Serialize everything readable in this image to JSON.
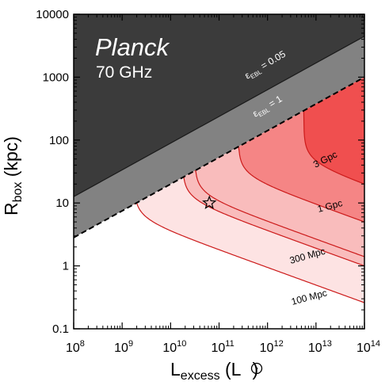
{
  "chart_data": {
    "type": "area",
    "x_scale": "log",
    "y_scale": "log",
    "xlim": [
      100000000.0,
      100000000000000.0
    ],
    "ylim": [
      0.1,
      10000
    ],
    "xlabel": {
      "main": "L",
      "sub": "excess",
      "unit_open": " (L",
      "unit_close": ")"
    },
    "ylabel": {
      "main": "R",
      "sub": "box",
      "unit": " (kpc)"
    },
    "x_ticks": [
      {
        "value": 100000000.0,
        "exp": "8"
      },
      {
        "value": 1000000000.0,
        "exp": "9"
      },
      {
        "value": 10000000000.0,
        "exp": "10"
      },
      {
        "value": 100000000000.0,
        "exp": "11"
      },
      {
        "value": 1000000000000.0,
        "exp": "12"
      },
      {
        "value": 10000000000000.0,
        "exp": "13"
      },
      {
        "value": 100000000000000.0,
        "exp": "14"
      }
    ],
    "y_ticks": [
      {
        "value": 0.1,
        "label": "0.1"
      },
      {
        "value": 1,
        "label": "1"
      },
      {
        "value": 10,
        "label": "10"
      },
      {
        "value": 100,
        "label": "100"
      },
      {
        "value": 1000,
        "label": "1000"
      },
      {
        "value": 10000,
        "label": "10000"
      }
    ],
    "annotations": {
      "title": "Planck",
      "subtitle": "70 GHz",
      "eps_low": {
        "symbol": "ε",
        "sub": "EBL",
        "text": " = 0.05"
      },
      "eps_high": {
        "symbol": "ε",
        "sub": "EBL",
        "text": " = 1"
      }
    },
    "boundaries": [
      {
        "name": "ε_EBL = 0.05",
        "points": [
          [
            100000000.0,
            12.6
          ],
          [
            100000000000000.0,
            4470
          ]
        ],
        "fill": "#3b3b3b",
        "style": "solid"
      },
      {
        "name": "ε_EBL = 1",
        "points": [
          [
            100000000.0,
            2.82
          ],
          [
            100000000000000.0,
            1000
          ]
        ],
        "fill": "#828282",
        "style": "dashed"
      }
    ],
    "series": [
      {
        "name": "100 Mpc",
        "L_min": 1780000000.0,
        "R_low_at_1e14": 0.26,
        "asymptote_power": -0.28,
        "fill": "#fde3e3"
      },
      {
        "name": "300 Mpc",
        "L_min": 17800000000.0,
        "R_low_at_1e14": 1.0,
        "asymptote_power": -0.28,
        "fill": "#f9bcbc"
      },
      {
        "name": "1 Gpc",
        "L_min": 250000000000.0,
        "R_low_at_1e14": 5.0,
        "asymptote_power": -0.28,
        "fill": "#f58585"
      },
      {
        "name": "3 Gpc",
        "L_min": 5600000000000.0,
        "R_low_at_1e14": 20.0,
        "asymptote_power": -0.28,
        "fill": "#f04f4f"
      }
    ],
    "extra_curve": {
      "name": "inner",
      "L_min": 31600000000.0,
      "R_low_at_1e14": 1.4,
      "asymptote_power": -0.28
    },
    "marker": {
      "symbol": "star",
      "x": 63000000000.0,
      "y": 10
    },
    "colors": {
      "curve": "#cc1a1a",
      "frame": "#000000"
    }
  }
}
